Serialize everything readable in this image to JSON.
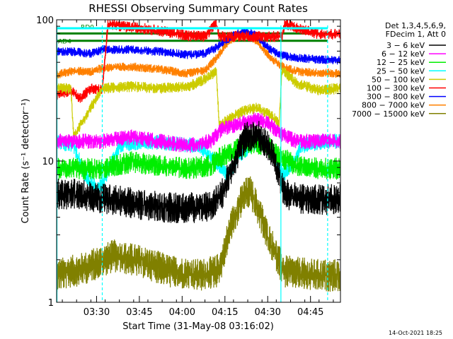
{
  "chart_data": {
    "type": "line",
    "title": "RHESSI Observing Summary Count Rates",
    "xlabel": "Start Time (31-May-08 03:16:02)",
    "ylabel": "Count Rate (s⁻¹ detector⁻¹)",
    "x_tick_labels": [
      "03:30",
      "03:45",
      "04:00",
      "04:15",
      "04:30",
      "04:45"
    ],
    "x_ticks_min": [
      14,
      29,
      44,
      59,
      74,
      89
    ],
    "xlim_min": [
      0,
      99.5
    ],
    "y_scale": "log",
    "ylim": [
      1,
      100
    ],
    "y_tick_labels": [
      "1",
      "10",
      "100"
    ],
    "y_tick_values": [
      1,
      10,
      100
    ],
    "legend_header": [
      "Det 1,3,4,5,6,9,",
      "FDecim 1, Att 0"
    ],
    "legend_position": "right",
    "timestamp": "14-Oct-2021 18:25",
    "flags": [
      {
        "name": "RD0",
        "color": "#008000",
        "level": 80
      },
      {
        "name": "AD4",
        "color": "#008000",
        "level": 71
      }
    ],
    "vlines_solid_min": [
      0,
      78.5
    ],
    "vlines_dashed_min": [
      16,
      95
    ],
    "series": [
      {
        "name": "3 - 6 keV",
        "label": "3 − 6 keV",
        "color": "#000000",
        "noise": 0.28,
        "x": [
          0,
          6,
          12,
          16,
          22,
          30,
          40,
          50,
          54,
          58,
          62,
          66,
          70,
          72,
          74,
          76,
          78,
          80,
          86,
          95,
          99
        ],
        "y": [
          6.0,
          6.0,
          5.8,
          5.6,
          5.4,
          5.0,
          4.8,
          4.8,
          5.0,
          6.0,
          10,
          15,
          16,
          15,
          13,
          11,
          8.0,
          6.0,
          5.5,
          5.5,
          5.5
        ]
      },
      {
        "name": "6 - 12 keV",
        "label": "6 − 12 keV",
        "color": "#ff00ff",
        "noise": 0.14,
        "x": [
          0,
          10,
          16,
          26,
          36,
          46,
          54,
          58,
          62,
          66,
          70,
          74,
          78,
          84,
          92,
          99
        ],
        "y": [
          14,
          14,
          14,
          15,
          14,
          13,
          14,
          17,
          18,
          19,
          20,
          19,
          16,
          14,
          14,
          14
        ]
      },
      {
        "name": "12 - 25 keV",
        "label": "12 − 25 keV",
        "color": "#00ee00",
        "noise": 0.2,
        "x": [
          0,
          10,
          16,
          26,
          36,
          46,
          54,
          58,
          62,
          66,
          70,
          74,
          78,
          84,
          92,
          99
        ],
        "y": [
          9,
          9,
          9,
          10,
          9.5,
          9,
          9.5,
          11,
          12,
          13,
          13.5,
          13,
          11,
          9.5,
          9,
          9
        ]
      },
      {
        "name": "25 - 50 keV",
        "label": "25 − 50 keV",
        "color": "#00ffff",
        "noise": 0.14,
        "x": [
          0,
          6,
          10,
          14,
          16,
          22,
          30,
          40,
          50,
          56,
          60,
          64,
          68,
          72,
          76,
          80,
          86,
          95,
          99
        ],
        "y": [
          14,
          13,
          8,
          6.5,
          7,
          13,
          14,
          13.5,
          13,
          10,
          8,
          11,
          13,
          14,
          11,
          8,
          13,
          14,
          14
        ]
      },
      {
        "name": "50 - 100 keV",
        "label": "50 − 100 keV",
        "color": "#cccc00",
        "noise": 0.1,
        "x": [
          0,
          5,
          6,
          16,
          26,
          36,
          46,
          52,
          56,
          57,
          62,
          66,
          70,
          74,
          78,
          79,
          84,
          92,
          99
        ],
        "y": [
          33,
          33,
          15,
          33,
          34,
          33,
          34,
          38,
          44,
          18,
          21,
          23,
          24,
          22,
          19,
          45,
          36,
          32,
          33
        ]
      },
      {
        "name": "100 - 300 keV",
        "label": "100 − 300 keV",
        "color": "#ff0000",
        "noise": 0.1,
        "x": [
          0,
          5,
          8,
          12,
          16,
          18,
          24,
          30,
          40,
          46,
          52,
          56,
          57,
          70,
          79,
          80,
          86,
          92,
          99
        ],
        "y": [
          30,
          32,
          28,
          33,
          32,
          95,
          90,
          88,
          82,
          78,
          77,
          95,
          77,
          77,
          77,
          95,
          86,
          80,
          80
        ]
      },
      {
        "name": "300 - 800 keV",
        "label": "300 − 800 keV",
        "color": "#0000ff",
        "noise": 0.08,
        "x": [
          0,
          6,
          12,
          16,
          26,
          36,
          46,
          52,
          56,
          62,
          66,
          70,
          74,
          78,
          82,
          90,
          99
        ],
        "y": [
          60,
          60,
          58,
          62,
          62,
          60,
          57,
          58,
          64,
          78,
          84,
          78,
          64,
          57,
          55,
          53,
          52
        ]
      },
      {
        "name": "800 - 7000 keV",
        "label": "800 − 7000 keV",
        "color": "#ff8000",
        "noise": 0.08,
        "x": [
          0,
          6,
          12,
          16,
          26,
          36,
          46,
          52,
          56,
          60,
          64,
          68,
          72,
          76,
          80,
          86,
          99
        ],
        "y": [
          41,
          44,
          43,
          46,
          47,
          45,
          42,
          44,
          54,
          70,
          79,
          77,
          64,
          52,
          46,
          43,
          42
        ]
      },
      {
        "name": "7000 - 15000 keV",
        "label": "7000 − 15000 keV",
        "color": "#808000",
        "noise": 0.3,
        "x": [
          0,
          10,
          20,
          30,
          40,
          50,
          56,
          58,
          60,
          62,
          64,
          66,
          68,
          70,
          72,
          74,
          76,
          78,
          80,
          90,
          99
        ],
        "y": [
          1.6,
          1.8,
          2.2,
          2.0,
          1.7,
          1.6,
          1.7,
          2.0,
          3.0,
          4.0,
          5.0,
          6.0,
          6.2,
          5.0,
          4.0,
          3.0,
          2.5,
          2.0,
          1.7,
          1.6,
          1.6
        ]
      }
    ]
  }
}
